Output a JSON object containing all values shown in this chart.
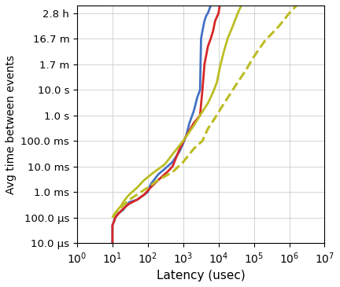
{
  "xlabel": "Latency (usec)",
  "ylabel": "Avg time between events",
  "lines": [
    {
      "color": "#4472c4",
      "linestyle": "solid",
      "linewidth": 2.0,
      "x": [
        10,
        10,
        11,
        12,
        13,
        15,
        20,
        25,
        30,
        50,
        70,
        100,
        120,
        150,
        200,
        300,
        500,
        800,
        1000,
        1200,
        1500,
        2000,
        2500,
        3000,
        3200,
        3500,
        4000,
        4500,
        5000,
        6000,
        7000,
        8000,
        10000,
        12000
      ],
      "y": [
        1e-05,
        5e-05,
        7e-05,
        0.0001,
        0.00012,
        0.00015,
        0.0002,
        0.0003,
        0.0004,
        0.0005,
        0.0007,
        0.001,
        0.002,
        0.003,
        0.005,
        0.008,
        0.015,
        0.04,
        0.08,
        0.15,
        0.5,
        1.5,
        5.0,
        10.0,
        1000.0,
        2000.0,
        5000.0,
        8000.0,
        10000.0,
        20000.0,
        50000.0,
        100000.0,
        500000.0,
        1000000.0
      ]
    },
    {
      "color": "#d62728",
      "linestyle": "solid",
      "linewidth": 2.0,
      "x": [
        10,
        10,
        11,
        12,
        14,
        16,
        20,
        30,
        50,
        80,
        120,
        200,
        350,
        500,
        800,
        1200,
        2000,
        3000,
        3500,
        4000,
        5000,
        6000,
        7000,
        8000,
        10000,
        12000,
        15000
      ],
      "y": [
        1e-05,
        5e-05,
        7e-05,
        0.0001,
        0.00013,
        0.00016,
        0.00022,
        0.00035,
        0.0005,
        0.0008,
        0.0015,
        0.003,
        0.006,
        0.01,
        0.05,
        0.15,
        0.5,
        1.0,
        10.0,
        100.0,
        500.0,
        1000.0,
        2000.0,
        5000.0,
        10000.0,
        50000.0,
        1000000.0
      ]
    },
    {
      "color": "#bcbd22",
      "linestyle": "solid",
      "linewidth": 2.0,
      "x": [
        10,
        12,
        14,
        16,
        18,
        20,
        25,
        30,
        50,
        80,
        150,
        300,
        500,
        1000,
        2000,
        3000,
        5000,
        7000,
        9000,
        11000,
        14000,
        18000,
        25000,
        35000,
        50000,
        70000
      ],
      "y": [
        0.0001,
        0.00015,
        0.0002,
        0.00025,
        0.0003,
        0.0004,
        0.0006,
        0.0008,
        0.0015,
        0.003,
        0.006,
        0.012,
        0.03,
        0.1,
        0.4,
        1.0,
        3.0,
        8.0,
        20.0,
        80.0,
        300.0,
        1000.0,
        3000.0,
        10000.0,
        30000.0,
        1000000.0
      ]
    },
    {
      "color": "#bcbd22",
      "linestyle": "dashed",
      "linewidth": 2.2,
      "x": [
        10,
        12,
        15,
        20,
        30,
        50,
        100,
        200,
        500,
        1000,
        2000,
        3500,
        5000,
        8000,
        12000,
        20000,
        35000,
        60000,
        100000,
        200000,
        500000,
        1000000,
        3000000,
        5000000
      ],
      "y": [
        0.0001,
        0.00015,
        0.0002,
        0.0003,
        0.0005,
        0.0008,
        0.0015,
        0.003,
        0.006,
        0.015,
        0.05,
        0.1,
        0.3,
        0.8,
        2.0,
        6.0,
        20.0,
        60.0,
        200.0,
        800.0,
        3000.0,
        10000.0,
        50000.0,
        1000000.0
      ]
    }
  ],
  "ytick_vals": [
    1e-05,
    0.0001,
    0.001,
    0.01,
    0.1,
    1.0,
    10.0,
    100.0,
    1000.0,
    10000.0
  ],
  "ytick_labels": [
    "10.0 μs",
    "100.0 μs",
    "1.0 ms",
    "10.0 ms",
    "100.0 ms",
    "1.0 s",
    "10.0 s",
    "1.7 m",
    "16.7 m",
    "2.8 h"
  ],
  "ylim": [
    1e-05,
    20000.0
  ],
  "xlim": [
    1,
    10000000.0
  ],
  "grid_color": "#cccccc",
  "fontsize_label": 11,
  "fontsize_tick": 9.5
}
